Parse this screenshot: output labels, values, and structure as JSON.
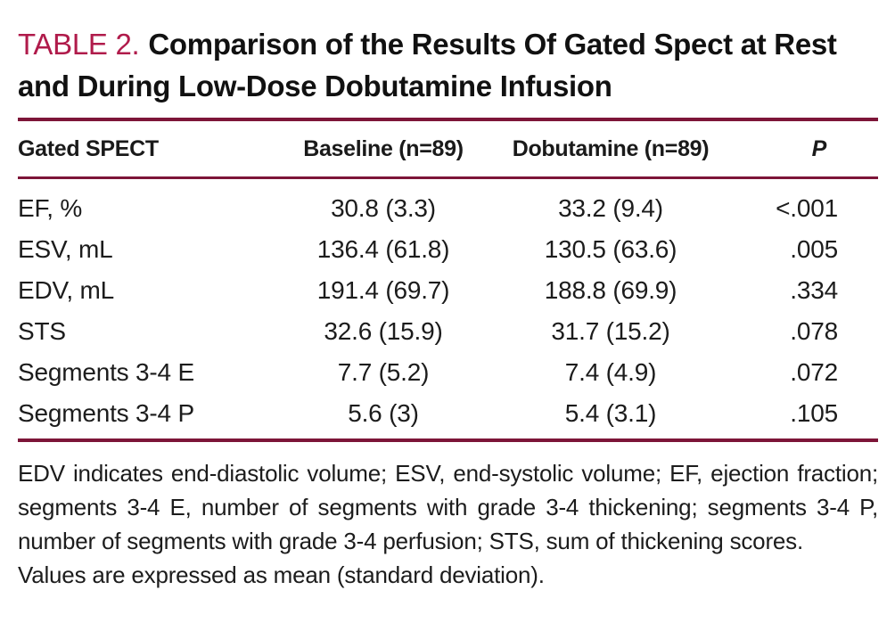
{
  "colors": {
    "accent_label_red": "#b01b4b",
    "rule_maroon": "#7d1538",
    "text": "#1a1a1a",
    "background": "#ffffff"
  },
  "title": {
    "label": "TABLE 2.",
    "caption": "Comparison of the Results Of Gated Spect at Rest and During Low-Dose Dobutamine Infusion"
  },
  "table": {
    "columns": [
      "Gated SPECT",
      "Baseline (n=89)",
      "Dobutamine (n=89)",
      "P"
    ],
    "rows": [
      {
        "label": "EF, %",
        "baseline": "30.8 (3.3)",
        "dobutamine": "33.2 (9.4)",
        "p": "<.001"
      },
      {
        "label": "ESV, mL",
        "baseline": "136.4 (61.8)",
        "dobutamine": "130.5 (63.6)",
        "p": ".005"
      },
      {
        "label": "EDV, mL",
        "baseline": "191.4 (69.7)",
        "dobutamine": "188.8 (69.9)",
        "p": ".334"
      },
      {
        "label": "STS",
        "baseline": "32.6 (15.9)",
        "dobutamine": "31.7 (15.2)",
        "p": ".078"
      },
      {
        "label": "Segments 3-4 E",
        "baseline": "7.7 (5.2)",
        "dobutamine": "7.4 (4.9)",
        "p": ".072"
      },
      {
        "label": "Segments 3-4 P",
        "baseline": "5.6 (3)",
        "dobutamine": "5.4 (3.1)",
        "p": ".105"
      }
    ]
  },
  "footnotes": [
    "EDV indicates end-diastolic volume; ESV, end-systolic volume; EF, ejection fraction; segments 3-4 E, number of segments with grade 3-4 thickening; segments 3-4 P, number of segments with grade 3-4 perfusion; STS, sum of thickening scores.",
    "Values are expressed as mean (standard deviation)."
  ]
}
